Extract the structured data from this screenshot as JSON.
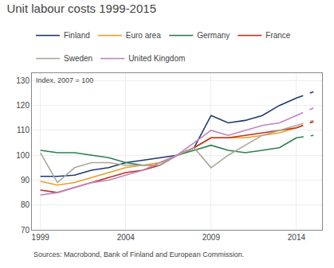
{
  "chart_data": {
    "type": "line",
    "title": "Unit labour costs 1999-2015",
    "ylabel": "Index, 2007 = 100",
    "source": "Sources: Macrobond, Bank of Finland and European Commission.",
    "x": [
      1999,
      2000,
      2001,
      2002,
      2003,
      2004,
      2005,
      2006,
      2007,
      2008,
      2009,
      2010,
      2011,
      2012,
      2013,
      2014,
      2015
    ],
    "xlim": [
      1998.5,
      2015.5
    ],
    "xticks": [
      1999,
      2004,
      2009,
      2014
    ],
    "ylim": [
      70,
      133
    ],
    "yticks": [
      70,
      80,
      90,
      100,
      110,
      120,
      130
    ],
    "grid": true,
    "legend": "top",
    "series": [
      {
        "name": "Finland",
        "color": "#1f3870",
        "values": [
          91.5,
          91.5,
          92,
          94,
          95,
          97,
          98,
          99,
          100,
          103,
          116,
          113,
          114,
          116,
          120,
          123,
          null
        ],
        "dashed_values": [
          null,
          null,
          null,
          null,
          null,
          null,
          null,
          null,
          null,
          null,
          null,
          null,
          null,
          null,
          null,
          123,
          125.5
        ]
      },
      {
        "name": "Euro area",
        "color": "#e8a020",
        "values": [
          89.5,
          88,
          89,
          91,
          93,
          95,
          96,
          97,
          100,
          103,
          107,
          107,
          107,
          108,
          109,
          111,
          null
        ],
        "dashed_values": [
          null,
          null,
          null,
          null,
          null,
          null,
          null,
          null,
          null,
          null,
          null,
          null,
          null,
          null,
          null,
          111,
          113.5
        ]
      },
      {
        "name": "Germany",
        "color": "#2e7d4f",
        "values": [
          102,
          101,
          101,
          100,
          99,
          97,
          96,
          96,
          100,
          102,
          104,
          102,
          101,
          102,
          103,
          107,
          null
        ],
        "dashed_values": [
          null,
          null,
          null,
          null,
          null,
          null,
          null,
          null,
          null,
          null,
          null,
          null,
          null,
          null,
          null,
          107,
          108
        ]
      },
      {
        "name": "France",
        "color": "#c03020",
        "values": [
          86,
          85,
          87,
          89,
          91,
          93,
          94,
          96,
          100,
          103,
          107,
          107,
          108,
          109,
          110,
          111,
          null
        ],
        "dashed_values": [
          null,
          null,
          null,
          null,
          null,
          null,
          null,
          null,
          null,
          null,
          null,
          null,
          null,
          null,
          null,
          111,
          113.5
        ]
      },
      {
        "name": "Sweden",
        "color": "#aaa898",
        "values": [
          101,
          89,
          95,
          97,
          97,
          96,
          96,
          96,
          100,
          103,
          95,
          100,
          104,
          108,
          110,
          112,
          null
        ],
        "dashed_values": [
          null,
          null,
          null,
          null,
          null,
          null,
          null,
          null,
          null,
          null,
          null,
          null,
          null,
          null,
          null,
          112,
          114
        ]
      },
      {
        "name": "United Kingdom",
        "color": "#bf85bf",
        "values": [
          84,
          85,
          87,
          89,
          90,
          92,
          94,
          97,
          100,
          105,
          110,
          108,
          110,
          112,
          113,
          116,
          null
        ],
        "dashed_values": [
          null,
          null,
          null,
          null,
          null,
          null,
          null,
          null,
          null,
          null,
          null,
          null,
          null,
          null,
          null,
          116,
          119
        ]
      }
    ]
  }
}
